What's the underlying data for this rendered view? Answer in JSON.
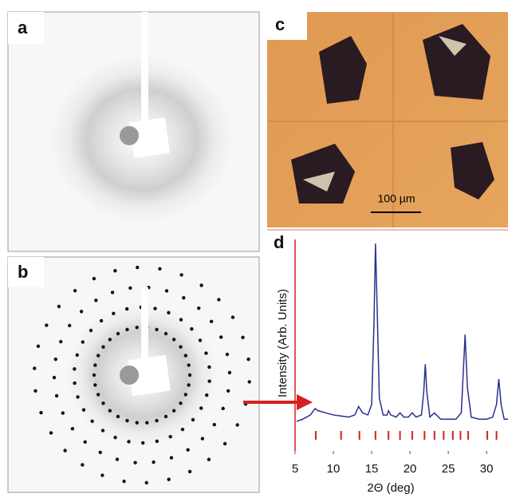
{
  "panels": {
    "a": "a",
    "b": "b",
    "c": "c",
    "d": "d"
  },
  "scale_bar": "100 µm",
  "chart_data": {
    "type": "line",
    "y_label": "Intensity (Arb. Units)",
    "x_label": "2Θ (deg)",
    "color": "#2a2f8f",
    "marker_color": "#d42020",
    "x": [
      5.2,
      6,
      7,
      7.6,
      8,
      9,
      10,
      11,
      12,
      12.8,
      13.3,
      13.8,
      14.5,
      15.0,
      15.3,
      15.5,
      15.7,
      16.0,
      16.5,
      17.0,
      17.2,
      17.5,
      18.2,
      18.7,
      19.2,
      19.8,
      20.3,
      20.8,
      21.5,
      21.8,
      22.0,
      22.2,
      22.6,
      23.2,
      24,
      25,
      26,
      26.7,
      27.0,
      27.2,
      27.5,
      28,
      29,
      30,
      30.8,
      31.3,
      31.6,
      31.9,
      32.3,
      32.8
    ],
    "values": [
      14,
      15,
      17,
      20,
      19,
      18,
      17,
      16.5,
      16,
      17,
      21,
      18,
      17,
      22,
      60,
      98,
      70,
      25,
      17,
      17,
      19,
      17,
      16,
      18,
      16,
      16,
      18,
      16,
      17,
      28,
      41,
      28,
      16,
      18,
      15,
      15,
      15,
      18,
      40,
      55,
      30,
      16,
      15,
      15,
      16,
      22,
      34,
      22,
      15,
      15
    ],
    "reference_peaks": [
      7.7,
      11.0,
      13.4,
      15.5,
      17.2,
      18.7,
      20.3,
      21.9,
      23.2,
      24.4,
      25.6,
      26.6,
      27.6,
      30.1,
      31.3
    ],
    "xlim": [
      5,
      32.8
    ],
    "xticks": [
      5,
      10,
      15,
      20,
      25,
      30
    ],
    "ylim": [
      0,
      100
    ]
  }
}
